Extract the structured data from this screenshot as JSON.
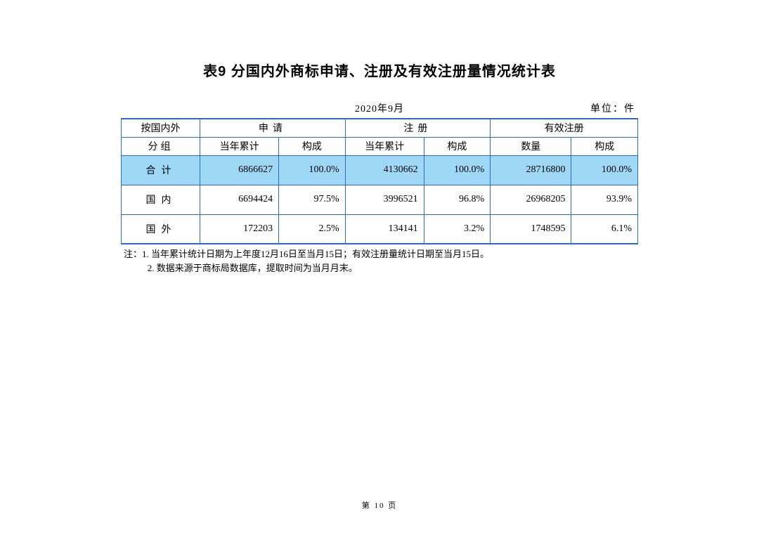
{
  "title": "表9 分国内外商标申请、注册及有效注册量情况统计表",
  "period": "2020年9月",
  "unit": "单位：件",
  "header": {
    "groupcol": "按国内外",
    "sublabel": "分组",
    "groups": [
      "申请",
      "注册",
      "有效注册"
    ],
    "cols": {
      "apply_qty": "当年累计",
      "apply_pct": "构成",
      "reg_qty": "当年累计",
      "reg_pct": "构成",
      "eff_qty": "数量",
      "eff_pct": "构成"
    }
  },
  "rows": [
    {
      "label": "合计",
      "apply_qty": "6866627",
      "apply_pct": "100.0%",
      "reg_qty": "4130662",
      "reg_pct": "100.0%",
      "eff_qty": "28716800",
      "eff_pct": "100.0%",
      "highlight": true
    },
    {
      "label": "国内",
      "apply_qty": "6694424",
      "apply_pct": "97.5%",
      "reg_qty": "3996521",
      "reg_pct": "96.8%",
      "eff_qty": "26968205",
      "eff_pct": "93.9%",
      "highlight": false
    },
    {
      "label": "国外",
      "apply_qty": "172203",
      "apply_pct": "2.5%",
      "reg_qty": "134141",
      "reg_pct": "3.2%",
      "eff_qty": "1748595",
      "eff_pct": "6.1%",
      "highlight": false
    }
  ],
  "notes": {
    "line1": "注：1. 当年累计统计日期为上年度12月16日至当月15日；有效注册量统计日期至当月15日。",
    "line2": "2. 数据来源于商标局数据库，提取时间为当月月末。"
  },
  "pagenum": "第 10 页",
  "colors": {
    "border": "#2a6ac9",
    "highlight": "#9fd8f7",
    "bg": "#ffffff"
  }
}
